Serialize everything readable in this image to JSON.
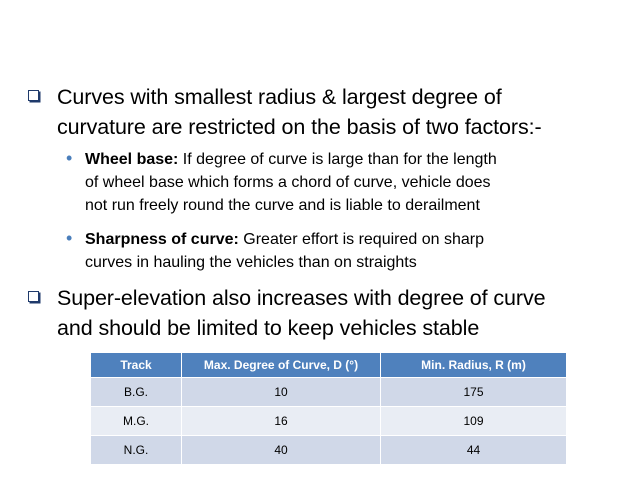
{
  "bullets": {
    "main1": {
      "line1": "Curves with smallest radius & largest degree of",
      "line2": "curvature are restricted on the basis of two factors:-"
    },
    "sub1": {
      "bold": "Wheel base:",
      "line1": " If degree of curve is large than for the length",
      "line2": "of wheel base which forms a chord of curve, vehicle does",
      "line3": "not run freely round the curve and is liable to derailment"
    },
    "sub2": {
      "bold": "Sharpness of curve:",
      "line1": " Greater effort is required on sharp",
      "line2": "curves in hauling the vehicles than on straights"
    },
    "main2": {
      "line1": "Super-elevation also increases with degree of curve",
      "line2": "and should be limited to keep vehicles stable"
    }
  },
  "table": {
    "headers": [
      "Track",
      "Max. Degree of Curve, D (°)",
      "Min. Radius, R (m)"
    ],
    "rows": [
      [
        "B.G.",
        "10",
        "175"
      ],
      [
        "M.G.",
        "16",
        "109"
      ],
      [
        "N.G.",
        "40",
        "44"
      ]
    ]
  },
  "colors": {
    "header_bg": "#4f81bd",
    "row_odd": "#d0d8e8",
    "row_even": "#e9edf4",
    "sub_bullet": "#4a7ebb"
  }
}
